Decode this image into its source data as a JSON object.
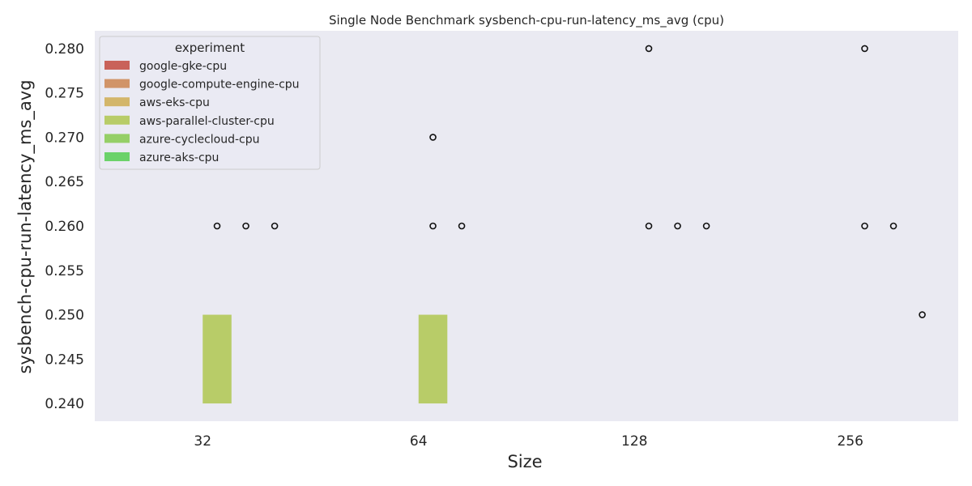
{
  "chart_data": {
    "type": "bar",
    "title": "Single Node Benchmark sysbench-cpu-run-latency_ms_avg (cpu)",
    "xlabel": "Size",
    "ylabel": "sysbench-cpu-run-latency_ms_avg",
    "categories": [
      "32",
      "64",
      "128",
      "256"
    ],
    "ylim": [
      0.238,
      0.282
    ],
    "yticks": [
      "0.240",
      "0.245",
      "0.250",
      "0.255",
      "0.260",
      "0.265",
      "0.270",
      "0.275",
      "0.280"
    ],
    "grid": false,
    "legend": {
      "title": "experiment",
      "placement": "top-left"
    },
    "series": [
      {
        "name": "google-gke-cpu",
        "color": "#c9625a",
        "bars": [],
        "outliers": []
      },
      {
        "name": "google-compute-engine-cpu",
        "color": "#d19468",
        "bars": [],
        "outliers": []
      },
      {
        "name": "aws-eks-cpu",
        "color": "#d3b66a",
        "bars": [],
        "outliers": []
      },
      {
        "name": "aws-parallel-cluster-cpu",
        "color": "#b8cc68",
        "bars": [
          {
            "category": "32",
            "low": 0.24,
            "high": 0.25
          },
          {
            "category": "64",
            "low": 0.24,
            "high": 0.25
          }
        ],
        "outliers": [
          {
            "category": "32",
            "value": 0.26
          },
          {
            "category": "64",
            "value": 0.27
          },
          {
            "category": "64",
            "value": 0.26
          },
          {
            "category": "128",
            "value": 0.28
          },
          {
            "category": "128",
            "value": 0.26
          },
          {
            "category": "256",
            "value": 0.28
          },
          {
            "category": "256",
            "value": 0.26
          }
        ]
      },
      {
        "name": "azure-cyclecloud-cpu",
        "color": "#95cf67",
        "bars": [],
        "outliers": [
          {
            "category": "32",
            "value": 0.26
          },
          {
            "category": "64",
            "value": 0.26
          },
          {
            "category": "128",
            "value": 0.26
          },
          {
            "category": "256",
            "value": 0.26
          }
        ]
      },
      {
        "name": "azure-aks-cpu",
        "color": "#6bd26a",
        "bars": [],
        "outliers": [
          {
            "category": "32",
            "value": 0.26
          },
          {
            "category": "128",
            "value": 0.26
          },
          {
            "category": "256",
            "value": 0.25
          }
        ]
      }
    ]
  }
}
